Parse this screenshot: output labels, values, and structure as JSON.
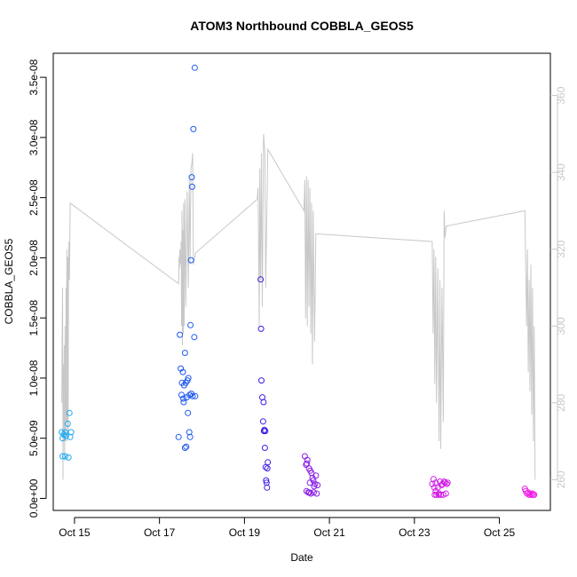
{
  "chart_data": {
    "type": "scatter",
    "title": "ATOM3 Northbound COBBLA_GEOS5",
    "xlabel": "Date",
    "ylabel": "COBBLA_GEOS5",
    "xlim": [
      14.5,
      26.2
    ],
    "ylim": [
      -1e-09,
      3.7e-08
    ],
    "y2lim": [
      252,
      371
    ],
    "x_ticks": [
      {
        "value": 15,
        "label": "Oct 15"
      },
      {
        "value": 17,
        "label": "Oct 17"
      },
      {
        "value": 19,
        "label": "Oct 19"
      },
      {
        "value": 21,
        "label": "Oct 21"
      },
      {
        "value": 23,
        "label": "Oct 23"
      },
      {
        "value": 25,
        "label": "Oct 25"
      }
    ],
    "y_ticks": [
      {
        "value": 0.0,
        "label": "0.0e+00"
      },
      {
        "value": 5e-09,
        "label": "5.0e-09"
      },
      {
        "value": 1e-08,
        "label": "1.0e-08"
      },
      {
        "value": 1.5e-08,
        "label": "1.5e-08"
      },
      {
        "value": 2e-08,
        "label": "2.0e-08"
      },
      {
        "value": 2.5e-08,
        "label": "2.5e-08"
      },
      {
        "value": 3e-08,
        "label": "3.0e-08"
      },
      {
        "value": 3.5e-08,
        "label": "3.5e-08"
      }
    ],
    "y2_ticks": [
      {
        "value": 260,
        "label": "260"
      },
      {
        "value": 280,
        "label": "280"
      },
      {
        "value": 300,
        "label": "300"
      },
      {
        "value": 320,
        "label": "320"
      },
      {
        "value": 340,
        "label": "340"
      },
      {
        "value": 360,
        "label": "360"
      }
    ],
    "colors": {
      "axes": "#000000",
      "secondary_axis": "#c8c8c8",
      "line": "#c8c8c8",
      "points_start": "#1eaaf0",
      "points_mid": "#1e3cf0",
      "points_purple": "#8a1ee6",
      "points_end": "#f01ee6"
    },
    "series": [
      {
        "kind": "points",
        "color": "#1eaaf0",
        "points": [
          [
            14.72,
            5e-09
          ],
          [
            14.75,
            5.3e-09
          ],
          [
            14.78,
            5.5e-09
          ],
          [
            14.72,
            3.5e-09
          ],
          [
            14.78,
            3.5e-09
          ],
          [
            14.8,
            5.2e-09
          ],
          [
            14.84,
            6.2e-09
          ],
          [
            14.86,
            3.4e-09
          ],
          [
            14.88,
            7.1e-09
          ],
          [
            14.9,
            5.1e-09
          ],
          [
            14.92,
            5.5e-09
          ],
          [
            14.7,
            5.5e-09
          ]
        ]
      },
      {
        "kind": "points",
        "color": "#1e5af0",
        "points": [
          [
            17.45,
            5.1e-09
          ],
          [
            17.48,
            1.36e-08
          ],
          [
            17.5,
            1.08e-08
          ],
          [
            17.52,
            8.6e-09
          ],
          [
            17.53,
            9.6e-09
          ],
          [
            17.55,
            1.05e-08
          ],
          [
            17.56,
            8.3e-09
          ],
          [
            17.57,
            8e-09
          ],
          [
            17.58,
            9.4e-09
          ],
          [
            17.6,
            4.2e-09
          ],
          [
            17.6,
            1.21e-08
          ],
          [
            17.62,
            9.6e-09
          ],
          [
            17.63,
            4.3e-09
          ],
          [
            17.64,
            8.4e-09
          ],
          [
            17.66,
            9.8e-09
          ],
          [
            17.67,
            7.1e-09
          ],
          [
            17.68,
            1e-08
          ],
          [
            17.7,
            5.5e-09
          ],
          [
            17.71,
            8.6e-09
          ],
          [
            17.72,
            5.1e-09
          ],
          [
            17.73,
            1.44e-08
          ],
          [
            17.74,
            1.98e-08
          ],
          [
            17.75,
            8.7e-09
          ],
          [
            17.76,
            2.67e-08
          ],
          [
            17.77,
            2.59e-08
          ],
          [
            17.78,
            8.5e-09
          ],
          [
            17.8,
            3.07e-08
          ],
          [
            17.82,
            1.34e-08
          ],
          [
            17.83,
            3.58e-08
          ],
          [
            17.84,
            8.5e-09
          ]
        ]
      },
      {
        "kind": "points",
        "color": "#3c1ee6",
        "points": [
          [
            19.38,
            1.82e-08
          ],
          [
            19.39,
            1.41e-08
          ],
          [
            19.4,
            9.8e-09
          ],
          [
            19.42,
            8.4e-09
          ],
          [
            19.44,
            6.4e-09
          ],
          [
            19.45,
            8e-09
          ],
          [
            19.46,
            5.6e-09
          ],
          [
            19.47,
            5.7e-09
          ],
          [
            19.48,
            4.2e-09
          ],
          [
            19.49,
            5.6e-09
          ],
          [
            19.5,
            2.6e-09
          ],
          [
            19.51,
            1.5e-09
          ],
          [
            19.52,
            1.3e-09
          ],
          [
            19.53,
            9e-10
          ],
          [
            19.54,
            2.5e-09
          ],
          [
            19.55,
            3e-09
          ]
        ]
      },
      {
        "kind": "points",
        "color": "#8a1ee6",
        "points": [
          [
            20.42,
            3.5e-09
          ],
          [
            20.45,
            2.8e-09
          ],
          [
            20.47,
            2.9e-09
          ],
          [
            20.48,
            3.2e-09
          ],
          [
            20.5,
            5e-10
          ],
          [
            20.52,
            2.5e-09
          ],
          [
            20.54,
            1.3e-09
          ],
          [
            20.55,
            2.3e-09
          ],
          [
            20.56,
            4e-10
          ],
          [
            20.58,
            2.1e-09
          ],
          [
            20.6,
            1.7e-09
          ],
          [
            20.62,
            1.5e-09
          ],
          [
            20.63,
            5e-10
          ],
          [
            20.64,
            1e-09
          ],
          [
            20.66,
            1.2e-09
          ],
          [
            20.68,
            1.9e-09
          ],
          [
            20.7,
            4e-10
          ],
          [
            20.72,
            1.1e-09
          ],
          [
            20.46,
            6e-10
          ],
          [
            20.53,
            5e-10
          ]
        ]
      },
      {
        "kind": "points",
        "color": "#d21ee6",
        "points": [
          [
            23.42,
            1.2e-09
          ],
          [
            23.45,
            1.6e-09
          ],
          [
            23.47,
            9e-10
          ],
          [
            23.48,
            3e-10
          ],
          [
            23.5,
            1.3e-09
          ],
          [
            23.52,
            3e-10
          ],
          [
            23.55,
            9e-10
          ],
          [
            23.57,
            3e-10
          ],
          [
            23.6,
            1.4e-09
          ],
          [
            23.62,
            3e-10
          ],
          [
            23.64,
            1.1e-09
          ],
          [
            23.66,
            1.2e-09
          ],
          [
            23.68,
            3e-10
          ],
          [
            23.7,
            1.4e-09
          ],
          [
            23.72,
            1.3e-09
          ],
          [
            23.74,
            4e-10
          ],
          [
            23.76,
            1.2e-09
          ],
          [
            23.78,
            1.3e-09
          ],
          [
            23.5,
            6e-10
          ],
          [
            23.58,
            4e-10
          ]
        ]
      },
      {
        "kind": "points",
        "color": "#f01ee6",
        "points": [
          [
            25.6,
            8e-10
          ],
          [
            25.62,
            6e-10
          ],
          [
            25.65,
            4e-10
          ],
          [
            25.68,
            5e-10
          ],
          [
            25.7,
            3e-10
          ],
          [
            25.72,
            4e-10
          ],
          [
            25.75,
            3e-10
          ],
          [
            25.78,
            4e-10
          ],
          [
            25.8,
            3e-10
          ],
          [
            25.82,
            3e-10
          ]
        ]
      }
    ],
    "line": {
      "axis": "right",
      "color": "#c8c8c8",
      "points": [
        [
          14.7,
          280
        ],
        [
          14.71,
          300
        ],
        [
          14.72,
          310
        ],
        [
          14.73,
          260
        ],
        [
          14.74,
          290
        ],
        [
          14.75,
          270
        ],
        [
          14.76,
          295
        ],
        [
          14.77,
          265
        ],
        [
          14.78,
          300
        ],
        [
          14.79,
          270
        ],
        [
          14.8,
          310
        ],
        [
          14.81,
          275
        ],
        [
          14.82,
          320
        ],
        [
          14.83,
          270
        ],
        [
          14.84,
          318
        ],
        [
          14.85,
          272
        ],
        [
          14.86,
          316
        ],
        [
          14.87,
          322
        ],
        [
          14.88,
          312
        ],
        [
          14.9,
          332
        ],
        [
          17.45,
          311
        ],
        [
          17.46,
          318
        ],
        [
          17.47,
          315
        ],
        [
          17.48,
          320
        ],
        [
          17.5,
          316
        ],
        [
          17.51,
          322
        ],
        [
          17.52,
          300
        ],
        [
          17.53,
          330
        ],
        [
          17.54,
          295
        ],
        [
          17.55,
          325
        ],
        [
          17.56,
          298
        ],
        [
          17.57,
          332
        ],
        [
          17.58,
          300
        ],
        [
          17.6,
          333
        ],
        [
          17.62,
          305
        ],
        [
          17.65,
          335
        ],
        [
          17.68,
          310
        ],
        [
          17.7,
          338
        ],
        [
          17.72,
          316
        ],
        [
          17.74,
          341
        ],
        [
          17.76,
          342
        ],
        [
          17.78,
          345
        ],
        [
          17.8,
          316
        ],
        [
          17.85,
          319
        ],
        [
          19.3,
          333
        ],
        [
          19.32,
          336
        ],
        [
          19.35,
          300
        ],
        [
          19.36,
          341
        ],
        [
          19.38,
          312
        ],
        [
          19.4,
          345
        ],
        [
          19.42,
          305
        ],
        [
          19.45,
          350
        ],
        [
          19.48,
          345
        ],
        [
          19.5,
          310
        ],
        [
          19.55,
          346
        ],
        [
          20.4,
          330
        ],
        [
          20.42,
          338
        ],
        [
          20.44,
          302
        ],
        [
          20.46,
          339
        ],
        [
          20.48,
          300
        ],
        [
          20.5,
          338
        ],
        [
          20.52,
          305
        ],
        [
          20.54,
          336
        ],
        [
          20.56,
          298
        ],
        [
          20.58,
          332
        ],
        [
          20.6,
          290
        ],
        [
          20.62,
          330
        ],
        [
          20.65,
          296
        ],
        [
          20.68,
          324
        ],
        [
          23.42,
          322
        ],
        [
          23.44,
          298
        ],
        [
          23.46,
          320
        ],
        [
          23.48,
          285
        ],
        [
          23.5,
          318
        ],
        [
          23.52,
          280
        ],
        [
          23.55,
          315
        ],
        [
          23.58,
          270
        ],
        [
          23.6,
          312
        ],
        [
          23.62,
          268
        ],
        [
          23.65,
          310
        ],
        [
          23.68,
          275
        ],
        [
          23.7,
          330
        ],
        [
          23.72,
          323
        ],
        [
          23.75,
          326
        ],
        [
          25.6,
          330
        ],
        [
          25.62,
          316
        ],
        [
          25.64,
          300
        ],
        [
          25.66,
          320
        ],
        [
          25.68,
          288
        ],
        [
          25.7,
          312
        ],
        [
          25.72,
          283
        ],
        [
          25.74,
          316
        ],
        [
          25.76,
          277
        ],
        [
          25.78,
          310
        ],
        [
          25.8,
          270
        ],
        [
          25.82,
          300
        ],
        [
          25.84,
          260
        ]
      ]
    }
  }
}
